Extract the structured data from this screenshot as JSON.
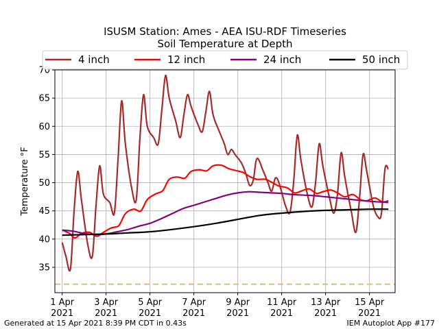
{
  "chart_data": {
    "type": "line",
    "title": "ISUSM Station: Ames - AEA ISU-RDF Timeseries",
    "subtitle": "Soil Temperature at Depth",
    "ylabel": "Temperature °F",
    "xlabel": "",
    "ylim": [
      30.5,
      70
    ],
    "xlim": [
      "2021-03-31 16:00",
      "2021-04-16 04:00"
    ],
    "yticks": [
      35,
      40,
      45,
      50,
      55,
      60,
      65,
      70
    ],
    "xticks": [
      {
        "x": "2021-04-01",
        "label_top": "1 Apr",
        "label_bottom": "2021"
      },
      {
        "x": "2021-04-03",
        "label_top": "3 Apr",
        "label_bottom": "2021"
      },
      {
        "x": "2021-04-05",
        "label_top": "5 Apr",
        "label_bottom": "2021"
      },
      {
        "x": "2021-04-07",
        "label_top": "7 Apr",
        "label_bottom": "2021"
      },
      {
        "x": "2021-04-09",
        "label_top": "9 Apr",
        "label_bottom": "2021"
      },
      {
        "x": "2021-04-11",
        "label_top": "11 Apr",
        "label_bottom": "2021"
      },
      {
        "x": "2021-04-13",
        "label_top": "13 Apr",
        "label_bottom": "2021"
      },
      {
        "x": "2021-04-15",
        "label_top": "15 Apr",
        "label_bottom": "2021"
      }
    ],
    "grid": true,
    "legend_position": "top",
    "reference_line": {
      "y": 32,
      "color": "#d4be80",
      "style": "dashed"
    },
    "series": [
      {
        "name": "4 inch",
        "color": "#a52a2a",
        "points": [
          [
            "2021-04-01 00:00",
            39.4
          ],
          [
            "2021-04-01 04:00",
            37.0
          ],
          [
            "2021-04-01 09:00",
            34.7
          ],
          [
            "2021-04-01 13:00",
            45.0
          ],
          [
            "2021-04-01 17:00",
            52.0
          ],
          [
            "2021-04-01 21:00",
            47.0
          ],
          [
            "2021-04-02 04:00",
            39.0
          ],
          [
            "2021-04-02 09:00",
            37.0
          ],
          [
            "2021-04-02 13:00",
            46.0
          ],
          [
            "2021-04-02 17:00",
            53.0
          ],
          [
            "2021-04-02 21:00",
            48.0
          ],
          [
            "2021-04-03 04:00",
            46.5
          ],
          [
            "2021-04-03 09:00",
            44.6
          ],
          [
            "2021-04-03 13:00",
            54.0
          ],
          [
            "2021-04-03 17:00",
            64.5
          ],
          [
            "2021-04-03 21:00",
            57.0
          ],
          [
            "2021-04-04 04:00",
            49.0
          ],
          [
            "2021-04-04 09:00",
            47.0
          ],
          [
            "2021-04-04 13:00",
            58.0
          ],
          [
            "2021-04-04 17:00",
            65.6
          ],
          [
            "2021-04-04 21:00",
            60.0
          ],
          [
            "2021-04-05 04:00",
            58.0
          ],
          [
            "2021-04-05 09:00",
            56.9
          ],
          [
            "2021-04-05 13:00",
            63.0
          ],
          [
            "2021-04-05 17:00",
            69.0
          ],
          [
            "2021-04-05 21:00",
            65.0
          ],
          [
            "2021-04-06 04:00",
            61.0
          ],
          [
            "2021-04-06 09:00",
            58.0
          ],
          [
            "2021-04-06 13:00",
            62.0
          ],
          [
            "2021-04-06 17:00",
            65.6
          ],
          [
            "2021-04-06 21:00",
            63.5
          ],
          [
            "2021-04-07 04:00",
            60.5
          ],
          [
            "2021-04-07 09:00",
            59.0
          ],
          [
            "2021-04-07 13:00",
            62.5
          ],
          [
            "2021-04-07 17:00",
            66.2
          ],
          [
            "2021-04-07 21:00",
            62.0
          ],
          [
            "2021-04-08 04:00",
            59.0
          ],
          [
            "2021-04-08 09:00",
            57.0
          ],
          [
            "2021-04-08 13:00",
            55.0
          ],
          [
            "2021-04-08 17:00",
            55.9
          ],
          [
            "2021-04-08 21:00",
            55.0
          ],
          [
            "2021-04-09 04:00",
            53.5
          ],
          [
            "2021-04-09 09:00",
            51.5
          ],
          [
            "2021-04-09 13:00",
            49.5
          ],
          [
            "2021-04-09 17:00",
            50.5
          ],
          [
            "2021-04-09 21:00",
            54.3
          ],
          [
            "2021-04-10 04:00",
            52.0
          ],
          [
            "2021-04-10 09:00",
            50.0
          ],
          [
            "2021-04-10 13:00",
            48.5
          ],
          [
            "2021-04-10 17:00",
            50.8
          ],
          [
            "2021-04-10 21:00",
            50.0
          ],
          [
            "2021-04-11 04:00",
            46.0
          ],
          [
            "2021-04-11 09:00",
            44.7
          ],
          [
            "2021-04-11 13:00",
            50.0
          ],
          [
            "2021-04-11 17:00",
            58.4
          ],
          [
            "2021-04-11 21:00",
            54.0
          ],
          [
            "2021-04-12 04:00",
            48.0
          ],
          [
            "2021-04-12 09:00",
            45.7
          ],
          [
            "2021-04-12 13:00",
            50.0
          ],
          [
            "2021-04-12 17:00",
            56.9
          ],
          [
            "2021-04-12 21:00",
            53.0
          ],
          [
            "2021-04-13 04:00",
            47.5
          ],
          [
            "2021-04-13 09:00",
            44.6
          ],
          [
            "2021-04-13 13:00",
            48.0
          ],
          [
            "2021-04-13 17:00",
            55.3
          ],
          [
            "2021-04-13 21:00",
            51.0
          ],
          [
            "2021-04-14 04:00",
            45.0
          ],
          [
            "2021-04-14 09:00",
            41.2
          ],
          [
            "2021-04-14 13:00",
            47.0
          ],
          [
            "2021-04-14 17:00",
            55.0
          ],
          [
            "2021-04-14 21:00",
            52.0
          ],
          [
            "2021-04-15 04:00",
            46.0
          ],
          [
            "2021-04-15 09:00",
            44.0
          ],
          [
            "2021-04-15 13:00",
            44.5
          ],
          [
            "2021-04-15 17:00",
            52.5
          ],
          [
            "2021-04-15 20:39",
            52.4
          ]
        ]
      },
      {
        "name": "12 inch",
        "color": "#ff0000",
        "points": [
          [
            "2021-04-01 00:00",
            41.6
          ],
          [
            "2021-04-01 08:00",
            41.0
          ],
          [
            "2021-04-01 14:00",
            40.2
          ],
          [
            "2021-04-01 21:00",
            41.0
          ],
          [
            "2021-04-02 06:00",
            41.2
          ],
          [
            "2021-04-02 14:00",
            40.5
          ],
          [
            "2021-04-02 21:00",
            41.2
          ],
          [
            "2021-04-03 06:00",
            42.0
          ],
          [
            "2021-04-03 14:00",
            42.4
          ],
          [
            "2021-04-03 21:00",
            44.5
          ],
          [
            "2021-04-04 06:00",
            45.3
          ],
          [
            "2021-04-04 14:00",
            45.0
          ],
          [
            "2021-04-04 21:00",
            47.0
          ],
          [
            "2021-04-05 06:00",
            48.0
          ],
          [
            "2021-04-05 14:00",
            48.6
          ],
          [
            "2021-04-05 21:00",
            50.6
          ],
          [
            "2021-04-06 06:00",
            51.0
          ],
          [
            "2021-04-06 14:00",
            50.8
          ],
          [
            "2021-04-06 21:00",
            52.0
          ],
          [
            "2021-04-07 06:00",
            52.3
          ],
          [
            "2021-04-07 14:00",
            52.1
          ],
          [
            "2021-04-07 21:00",
            53.0
          ],
          [
            "2021-04-08 06:00",
            53.1
          ],
          [
            "2021-04-08 14:00",
            52.5
          ],
          [
            "2021-04-08 21:00",
            52.2
          ],
          [
            "2021-04-09 06:00",
            51.8
          ],
          [
            "2021-04-09 14:00",
            51.0
          ],
          [
            "2021-04-09 21:00",
            50.6
          ],
          [
            "2021-04-10 06:00",
            50.6
          ],
          [
            "2021-04-10 14:00",
            50.0
          ],
          [
            "2021-04-10 21:00",
            49.4
          ],
          [
            "2021-04-11 06:00",
            49.1
          ],
          [
            "2021-04-11 14:00",
            48.2
          ],
          [
            "2021-04-11 21:00",
            48.5
          ],
          [
            "2021-04-12 06:00",
            48.9
          ],
          [
            "2021-04-12 14:00",
            48.1
          ],
          [
            "2021-04-12 21:00",
            48.4
          ],
          [
            "2021-04-13 06:00",
            48.7
          ],
          [
            "2021-04-13 14:00",
            48.1
          ],
          [
            "2021-04-13 21:00",
            47.5
          ],
          [
            "2021-04-14 06:00",
            47.9
          ],
          [
            "2021-04-14 14:00",
            47.0
          ],
          [
            "2021-04-14 21:00",
            46.8
          ],
          [
            "2021-04-15 06:00",
            47.3
          ],
          [
            "2021-04-15 14:00",
            46.6
          ],
          [
            "2021-04-15 20:39",
            46.8
          ]
        ]
      },
      {
        "name": "24 inch",
        "color": "#800080",
        "points": [
          [
            "2021-04-01 00:00",
            41.6
          ],
          [
            "2021-04-01 12:00",
            41.4
          ],
          [
            "2021-04-02 00:00",
            41.0
          ],
          [
            "2021-04-02 12:00",
            40.8
          ],
          [
            "2021-04-03 00:00",
            40.9
          ],
          [
            "2021-04-03 12:00",
            41.3
          ],
          [
            "2021-04-04 00:00",
            41.7
          ],
          [
            "2021-04-04 12:00",
            42.3
          ],
          [
            "2021-04-05 00:00",
            42.8
          ],
          [
            "2021-04-05 12:00",
            43.6
          ],
          [
            "2021-04-06 00:00",
            44.5
          ],
          [
            "2021-04-06 12:00",
            45.4
          ],
          [
            "2021-04-07 00:00",
            46.0
          ],
          [
            "2021-04-07 12:00",
            46.6
          ],
          [
            "2021-04-08 00:00",
            47.2
          ],
          [
            "2021-04-08 12:00",
            47.8
          ],
          [
            "2021-04-09 00:00",
            48.2
          ],
          [
            "2021-04-09 12:00",
            48.4
          ],
          [
            "2021-04-10 00:00",
            48.3
          ],
          [
            "2021-04-10 12:00",
            48.2
          ],
          [
            "2021-04-11 00:00",
            48.1
          ],
          [
            "2021-04-11 12:00",
            47.9
          ],
          [
            "2021-04-12 00:00",
            47.8
          ],
          [
            "2021-04-12 12:00",
            47.7
          ],
          [
            "2021-04-13 00:00",
            47.5
          ],
          [
            "2021-04-13 12:00",
            47.3
          ],
          [
            "2021-04-14 00:00",
            47.1
          ],
          [
            "2021-04-14 12:00",
            46.9
          ],
          [
            "2021-04-15 00:00",
            46.7
          ],
          [
            "2021-04-15 20:39",
            46.5
          ]
        ]
      },
      {
        "name": "50 inch",
        "color": "#000000",
        "points": [
          [
            "2021-04-01 00:00",
            40.7
          ],
          [
            "2021-04-02 00:00",
            40.8
          ],
          [
            "2021-04-03 00:00",
            40.9
          ],
          [
            "2021-04-04 00:00",
            41.1
          ],
          [
            "2021-04-05 00:00",
            41.3
          ],
          [
            "2021-04-06 00:00",
            41.7
          ],
          [
            "2021-04-07 00:00",
            42.2
          ],
          [
            "2021-04-08 00:00",
            42.8
          ],
          [
            "2021-04-09 00:00",
            43.5
          ],
          [
            "2021-04-10 00:00",
            44.2
          ],
          [
            "2021-04-11 00:00",
            44.6
          ],
          [
            "2021-04-12 00:00",
            44.9
          ],
          [
            "2021-04-13 00:00",
            45.1
          ],
          [
            "2021-04-14 00:00",
            45.2
          ],
          [
            "2021-04-15 00:00",
            45.3
          ],
          [
            "2021-04-15 20:39",
            45.3
          ]
        ]
      }
    ]
  },
  "footer": {
    "left": "Generated at 15 Apr 2021 8:39 PM CDT in 0.43s",
    "right": "IEM Autoplot App #177"
  }
}
